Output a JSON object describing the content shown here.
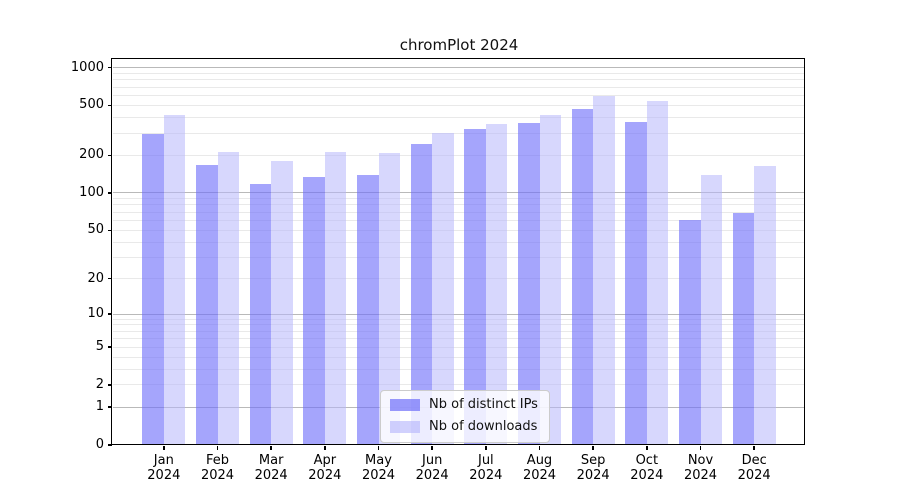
{
  "title": "chromPlot 2024",
  "chart_data": {
    "type": "bar",
    "title": "chromPlot 2024",
    "scale": "log1p",
    "categories": [
      "Jan 2024",
      "Feb 2024",
      "Mar 2024",
      "Apr 2024",
      "May 2024",
      "Jun 2024",
      "Jul 2024",
      "Aug 2024",
      "Sep 2024",
      "Oct 2024",
      "Nov 2024",
      "Dec 2024"
    ],
    "series": [
      {
        "name": "Nb of distinct IPs",
        "color": "#6e6efa",
        "alpha": 0.62,
        "values": [
          297,
          168,
          117,
          135,
          140,
          245,
          322,
          364,
          468,
          371,
          60,
          69
        ]
      },
      {
        "name": "Nb of downloads",
        "color": "#b6b6fc",
        "alpha": 0.55,
        "values": [
          421,
          212,
          180,
          212,
          209,
          300,
          355,
          420,
          597,
          542,
          138,
          165
        ]
      }
    ],
    "y_ticks": [
      1000,
      500,
      200,
      100,
      50,
      20,
      10,
      5,
      2,
      1,
      0
    ],
    "ylim": [
      0,
      1150
    ],
    "xlabel": "",
    "ylabel": "",
    "grid": true,
    "legend_position": "lower center"
  },
  "colors": {
    "grid_minor": "#e9e9e9",
    "grid_major": "#b9b9b9",
    "spine": "#000000",
    "background": "#ffffff"
  }
}
